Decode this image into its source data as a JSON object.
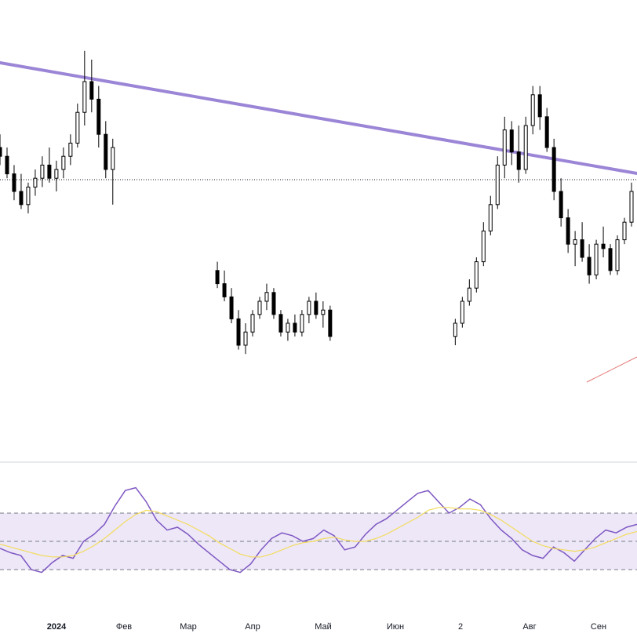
{
  "chart_data": {
    "type": "candlestick",
    "title": "",
    "x_axis": {
      "tick_labels": [
        "2024",
        "Фев",
        "Мар",
        "Апр",
        "Май",
        "Июн",
        "2",
        "Авг",
        "Сен"
      ],
      "bold_labels": [
        "2024"
      ]
    },
    "y_axis": {
      "visible": false,
      "ylim": [
        0,
        100
      ]
    },
    "grid": false,
    "candles": [
      {
        "o": 70,
        "h": 73,
        "l": 66,
        "c": 68
      },
      {
        "o": 68,
        "h": 70,
        "l": 63,
        "c": 64
      },
      {
        "o": 64,
        "h": 66,
        "l": 58,
        "c": 60
      },
      {
        "o": 60,
        "h": 64,
        "l": 56,
        "c": 57
      },
      {
        "o": 57,
        "h": 62,
        "l": 55,
        "c": 61
      },
      {
        "o": 61,
        "h": 65,
        "l": 59,
        "c": 63
      },
      {
        "o": 63,
        "h": 68,
        "l": 61,
        "c": 66
      },
      {
        "o": 66,
        "h": 70,
        "l": 62,
        "c": 63
      },
      {
        "o": 63,
        "h": 67,
        "l": 60,
        "c": 65
      },
      {
        "o": 65,
        "h": 70,
        "l": 63,
        "c": 68
      },
      {
        "o": 68,
        "h": 73,
        "l": 66,
        "c": 71
      },
      {
        "o": 71,
        "h": 80,
        "l": 70,
        "c": 78
      },
      {
        "o": 78,
        "h": 92,
        "l": 75,
        "c": 85
      },
      {
        "o": 85,
        "h": 90,
        "l": 78,
        "c": 81
      },
      {
        "o": 81,
        "h": 84,
        "l": 70,
        "c": 73
      },
      {
        "o": 73,
        "h": 76,
        "l": 63,
        "c": 65
      },
      {
        "o": 65,
        "h": 72,
        "l": 57,
        "c": 70
      },
      {
        "o": 42,
        "h": 44,
        "l": 38,
        "c": 39
      },
      {
        "o": 39,
        "h": 42,
        "l": 35,
        "c": 36
      },
      {
        "o": 36,
        "h": 38,
        "l": 30,
        "c": 31
      },
      {
        "o": 31,
        "h": 33,
        "l": 24,
        "c": 25
      },
      {
        "o": 25,
        "h": 30,
        "l": 23,
        "c": 28
      },
      {
        "o": 28,
        "h": 33,
        "l": 27,
        "c": 32
      },
      {
        "o": 32,
        "h": 36,
        "l": 31,
        "c": 35
      },
      {
        "o": 35,
        "h": 39,
        "l": 33,
        "c": 37
      },
      {
        "o": 37,
        "h": 38,
        "l": 31,
        "c": 32
      },
      {
        "o": 32,
        "h": 33,
        "l": 27,
        "c": 28
      },
      {
        "o": 28,
        "h": 31,
        "l": 26,
        "c": 30
      },
      {
        "o": 30,
        "h": 32,
        "l": 27,
        "c": 28
      },
      {
        "o": 28,
        "h": 33,
        "l": 27,
        "c": 32
      },
      {
        "o": 32,
        "h": 36,
        "l": 30,
        "c": 35
      },
      {
        "o": 35,
        "h": 37,
        "l": 31,
        "c": 32
      },
      {
        "o": 32,
        "h": 35,
        "l": 29,
        "c": 33
      },
      {
        "o": 33,
        "h": 34,
        "l": 26,
        "c": 27
      },
      {
        "o": 27,
        "h": 31,
        "l": 25,
        "c": 30
      },
      {
        "o": 30,
        "h": 36,
        "l": 29,
        "c": 35
      },
      {
        "o": 35,
        "h": 40,
        "l": 34,
        "c": 38
      },
      {
        "o": 38,
        "h": 45,
        "l": 37,
        "c": 44
      },
      {
        "o": 44,
        "h": 53,
        "l": 43,
        "c": 51
      },
      {
        "o": 51,
        "h": 59,
        "l": 50,
        "c": 57
      },
      {
        "o": 57,
        "h": 68,
        "l": 56,
        "c": 66
      },
      {
        "o": 66,
        "h": 77,
        "l": 63,
        "c": 74
      },
      {
        "o": 74,
        "h": 76,
        "l": 66,
        "c": 69
      },
      {
        "o": 69,
        "h": 75,
        "l": 62,
        "c": 65
      },
      {
        "o": 65,
        "h": 77,
        "l": 64,
        "c": 75
      },
      {
        "o": 75,
        "h": 84,
        "l": 73,
        "c": 82
      },
      {
        "o": 82,
        "h": 84,
        "l": 74,
        "c": 77
      },
      {
        "o": 77,
        "h": 79,
        "l": 69,
        "c": 70
      },
      {
        "o": 70,
        "h": 72,
        "l": 58,
        "c": 60
      },
      {
        "o": 60,
        "h": 63,
        "l": 52,
        "c": 54
      },
      {
        "o": 54,
        "h": 56,
        "l": 46,
        "c": 48
      },
      {
        "o": 48,
        "h": 51,
        "l": 43,
        "c": 49
      },
      {
        "o": 49,
        "h": 53,
        "l": 44,
        "c": 45
      },
      {
        "o": 45,
        "h": 48,
        "l": 39,
        "c": 41
      },
      {
        "o": 41,
        "h": 49,
        "l": 40,
        "c": 48
      },
      {
        "o": 48,
        "h": 52,
        "l": 45,
        "c": 47
      },
      {
        "o": 47,
        "h": 48,
        "l": 41,
        "c": 42
      },
      {
        "o": 42,
        "h": 50,
        "l": 41,
        "c": 49
      },
      {
        "o": 49,
        "h": 54,
        "l": 48,
        "c": 53
      },
      {
        "o": 53,
        "h": 62,
        "l": 52,
        "c": 60
      }
    ],
    "indicator": {
      "type": "rsi",
      "series": [
        {
          "name": "",
          "color": "#7e57c2",
          "values": [
            45,
            42,
            40,
            30,
            28,
            35,
            40,
            38,
            50,
            55,
            62,
            75,
            86,
            88,
            78,
            65,
            58,
            60,
            55,
            48,
            42,
            36,
            30,
            28,
            34,
            44,
            52,
            56,
            54,
            50,
            52,
            58,
            54,
            44,
            46,
            55,
            62,
            66,
            72,
            78,
            84,
            86,
            78,
            70,
            74,
            80,
            76,
            66,
            58,
            52,
            44,
            40,
            38,
            46,
            42,
            36,
            44,
            52,
            58,
            56,
            60,
            62
          ]
        },
        {
          "name": "",
          "color": "#f3dc5b",
          "values": [
            48,
            46,
            44,
            42,
            40,
            39,
            39,
            40,
            43,
            47,
            52,
            58,
            64,
            69,
            72,
            71,
            68,
            65,
            62,
            58,
            54,
            49,
            45,
            41,
            39,
            39,
            41,
            44,
            47,
            49,
            50,
            52,
            53,
            51,
            50,
            50,
            52,
            55,
            59,
            63,
            67,
            72,
            74,
            74,
            73,
            73,
            72,
            69,
            65,
            60,
            55,
            50,
            47,
            45,
            44,
            43,
            44,
            46,
            49,
            52,
            55,
            57
          ]
        }
      ],
      "levels": [
        70,
        50,
        30
      ]
    },
    "colors": {
      "trendline": "#9b85d6",
      "support_line": "#e57373",
      "rsi_band": "#ede7f8",
      "candle_up": "#ffffff",
      "candle_down": "#000000"
    }
  }
}
